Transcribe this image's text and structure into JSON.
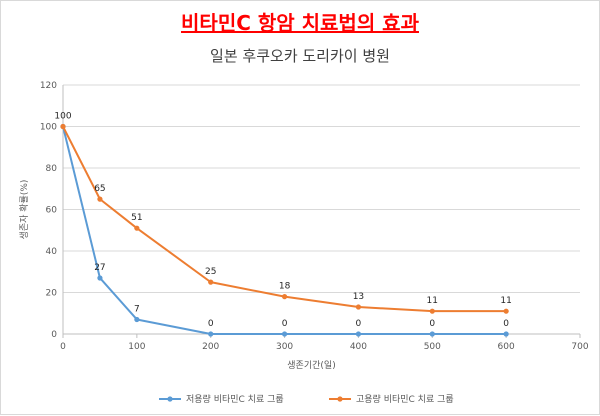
{
  "chart_data": {
    "type": "line",
    "title": "비타민C 항암 치료법의 효과",
    "subtitle": "일본 후쿠오카 도리카이 병원",
    "xlabel": "생존기간(일)",
    "ylabel": "생존자 확률(%)",
    "xlim": [
      0,
      700
    ],
    "ylim": [
      0,
      120
    ],
    "xticks": [
      0,
      100,
      200,
      300,
      400,
      500,
      600,
      700
    ],
    "yticks": [
      0,
      20,
      40,
      60,
      80,
      100,
      120
    ],
    "grid": true,
    "legend_position": "bottom",
    "series": [
      {
        "name": "저용량 비타민C 치료 그룹",
        "color": "#5b9bd5",
        "x": [
          0,
          50,
          100,
          200,
          300,
          400,
          500,
          600
        ],
        "y": [
          100,
          27,
          7,
          0,
          0,
          0,
          0,
          0
        ],
        "labels": [
          "",
          "27",
          "7",
          "0",
          "0",
          "0",
          "0",
          "0"
        ]
      },
      {
        "name": "고용량 비타민C 치료 그룹",
        "color": "#ed7d31",
        "x": [
          0,
          50,
          100,
          200,
          300,
          400,
          500,
          600
        ],
        "y": [
          100,
          65,
          51,
          25,
          18,
          13,
          11,
          11
        ],
        "labels": [
          "100",
          "65",
          "51",
          "25",
          "18",
          "13",
          "11",
          "11"
        ]
      }
    ]
  }
}
